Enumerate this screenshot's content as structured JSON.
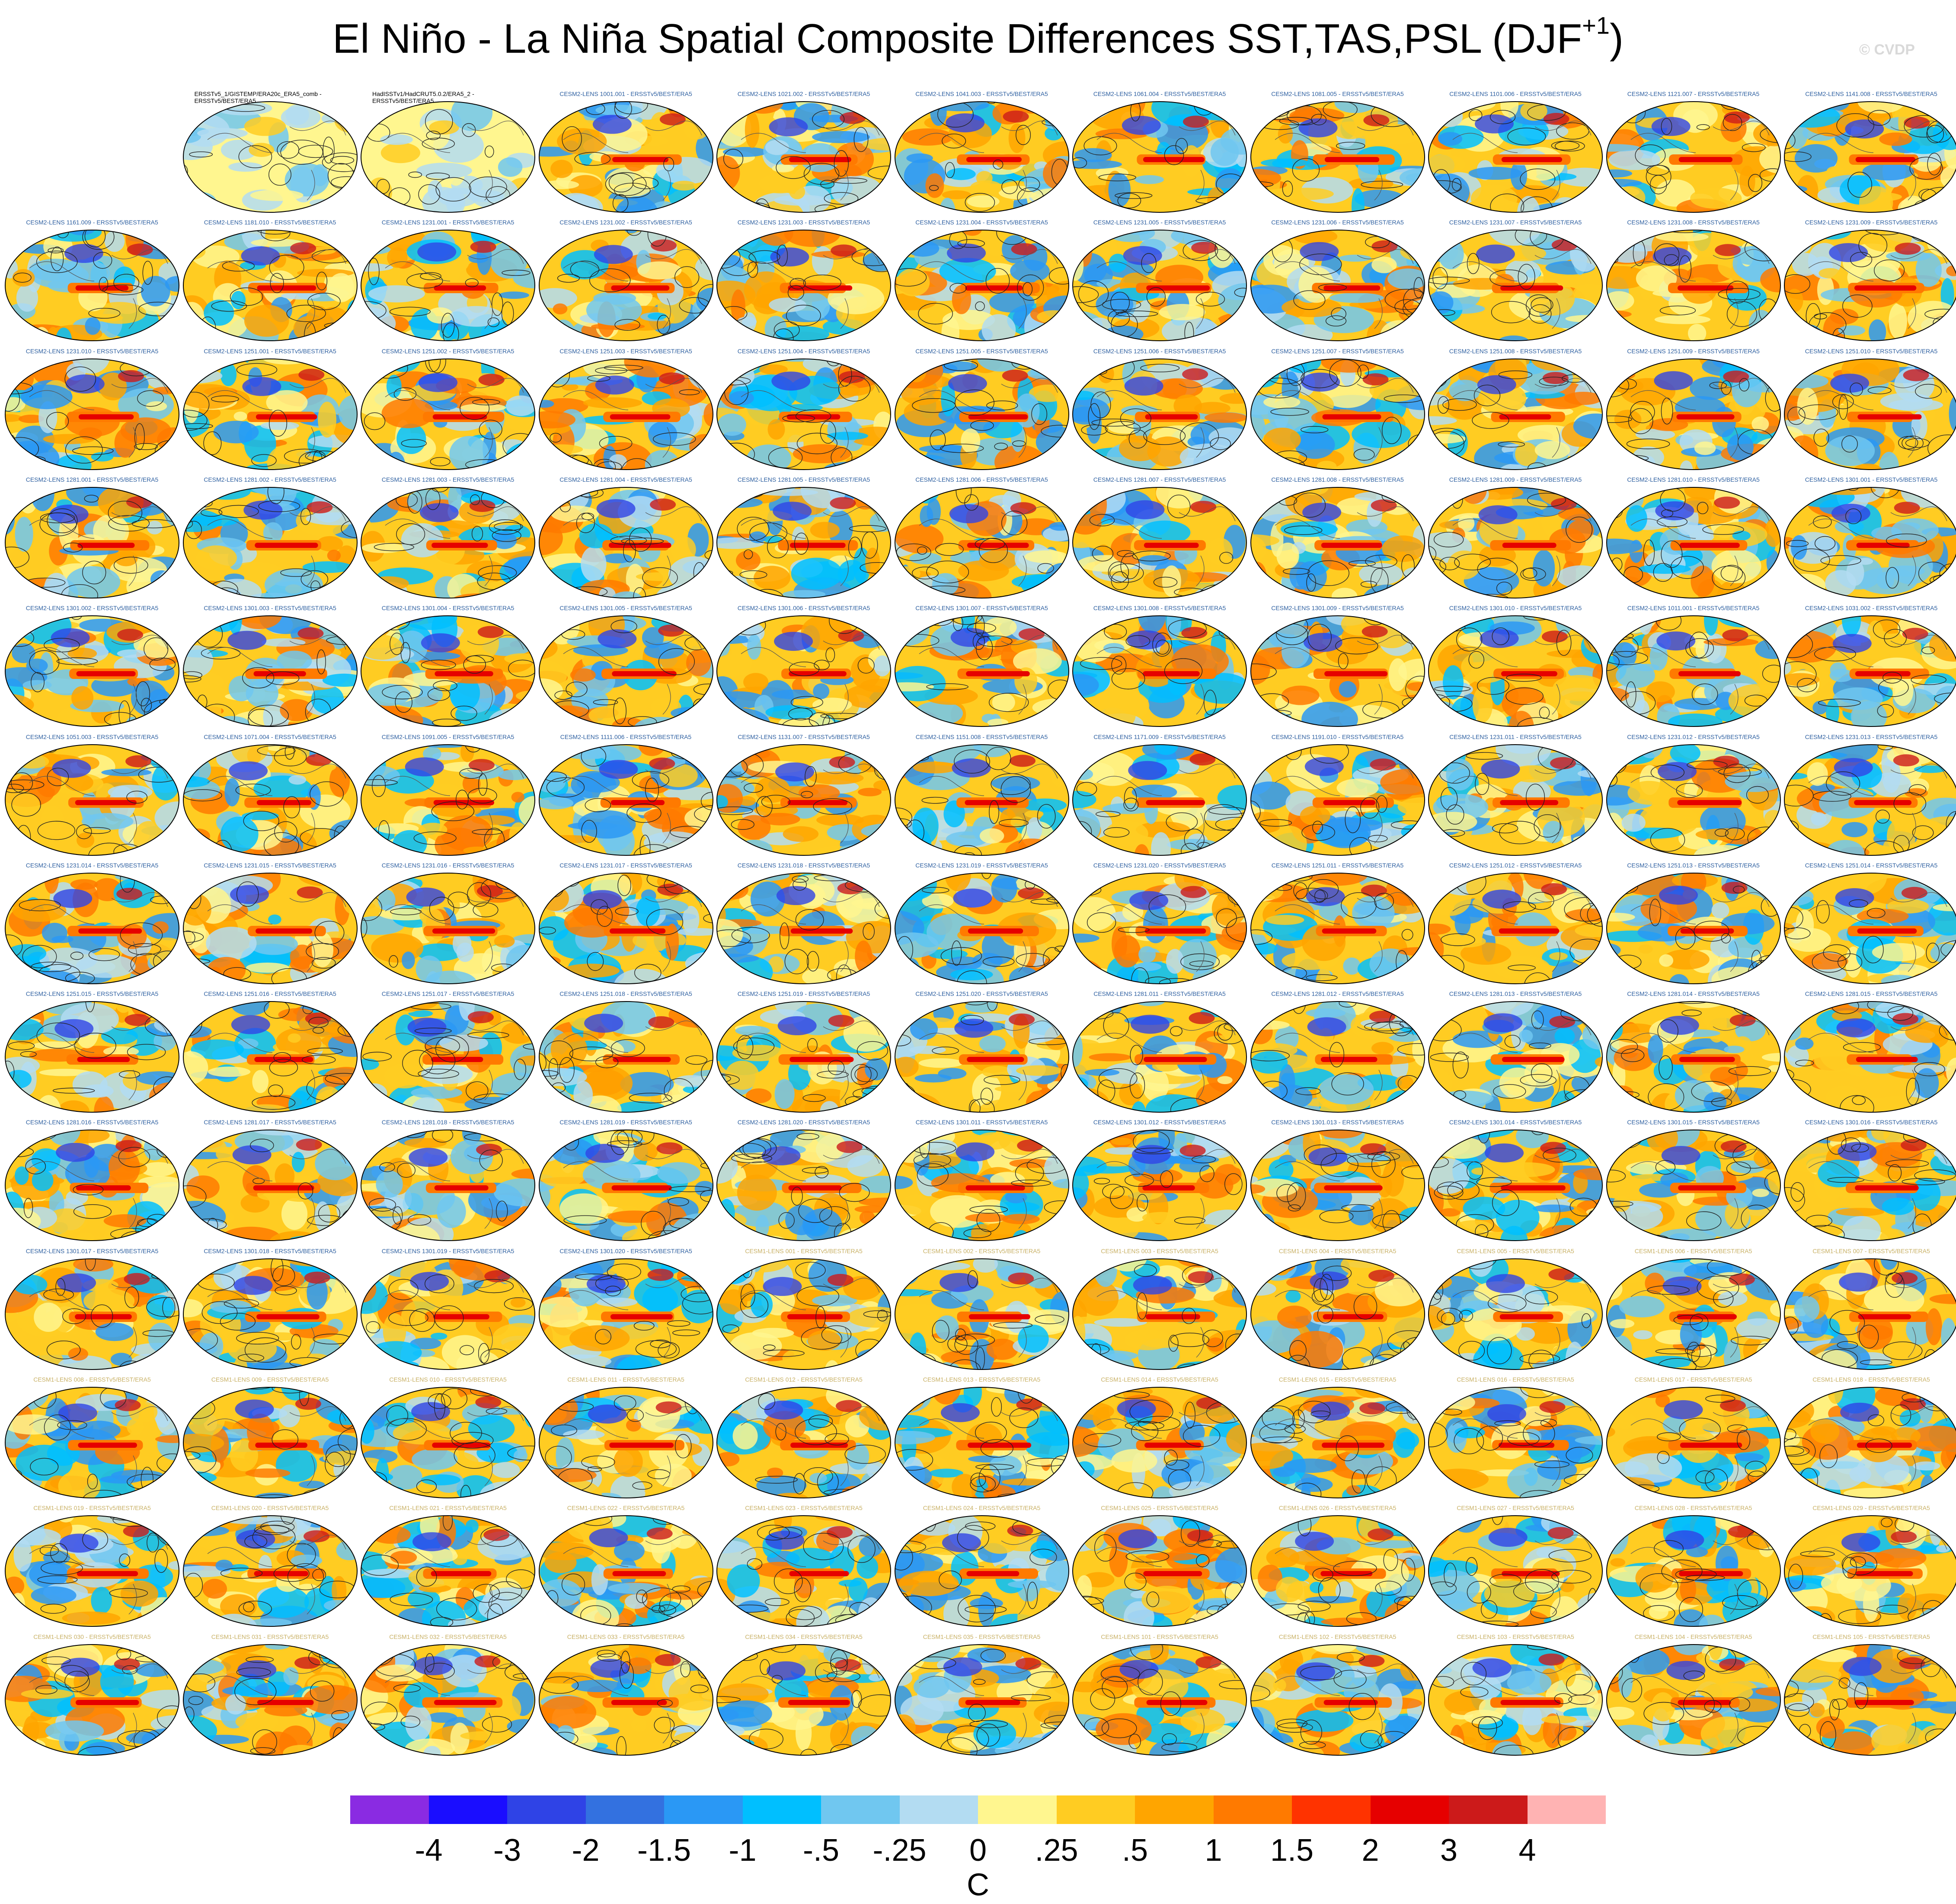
{
  "title": {
    "text": "El Niño - La Niña Spatial Composite Differences SST,TAS,PSL (DJF",
    "superscript": "+1",
    "close": ")"
  },
  "watermark": "© CVDP",
  "panels": [
    {
      "label": "ERSSTv5_1/GISTEMP/ERA20c_ERA5_comb - ERSSTv5/BEST/ERA5",
      "group": "obs1"
    },
    {
      "label": "HadISSTv1/HadCRUT5.0.2/ERA5_2 - ERSSTv5/BEST/ERA5",
      "group": "obs2"
    },
    {
      "label": "CESM2-LENS 1001.001 - ERSSTv5/BEST/ERA5",
      "group": "cesm2"
    },
    {
      "label": "CESM2-LENS 1021.002 - ERSSTv5/BEST/ERA5",
      "group": "cesm2"
    },
    {
      "label": "CESM2-LENS 1041.003 - ERSSTv5/BEST/ERA5",
      "group": "cesm2"
    },
    {
      "label": "CESM2-LENS 1061.004 - ERSSTv5/BEST/ERA5",
      "group": "cesm2"
    },
    {
      "label": "CESM2-LENS 1081.005 - ERSSTv5/BEST/ERA5",
      "group": "cesm2"
    },
    {
      "label": "CESM2-LENS 1101.006 - ERSSTv5/BEST/ERA5",
      "group": "cesm2"
    },
    {
      "label": "CESM2-LENS 1121.007 - ERSSTv5/BEST/ERA5",
      "group": "cesm2"
    },
    {
      "label": "CESM2-LENS 1141.008 - ERSSTv5/BEST/ERA5",
      "group": "cesm2"
    },
    {
      "label": "CESM2-LENS 1161.009 - ERSSTv5/BEST/ERA5",
      "group": "cesm2"
    },
    {
      "label": "CESM2-LENS 1181.010 - ERSSTv5/BEST/ERA5",
      "group": "cesm2"
    },
    {
      "label": "CESM2-LENS 1231.001 - ERSSTv5/BEST/ERA5",
      "group": "cesm2"
    },
    {
      "label": "CESM2-LENS 1231.002 - ERSSTv5/BEST/ERA5",
      "group": "cesm2"
    },
    {
      "label": "CESM2-LENS 1231.003 - ERSSTv5/BEST/ERA5",
      "group": "cesm2"
    },
    {
      "label": "CESM2-LENS 1231.004 - ERSSTv5/BEST/ERA5",
      "group": "cesm2"
    },
    {
      "label": "CESM2-LENS 1231.005 - ERSSTv5/BEST/ERA5",
      "group": "cesm2"
    },
    {
      "label": "CESM2-LENS 1231.006 - ERSSTv5/BEST/ERA5",
      "group": "cesm2"
    },
    {
      "label": "CESM2-LENS 1231.007 - ERSSTv5/BEST/ERA5",
      "group": "cesm2"
    },
    {
      "label": "CESM2-LENS 1231.008 - ERSSTv5/BEST/ERA5",
      "group": "cesm2"
    },
    {
      "label": "CESM2-LENS 1231.009 - ERSSTv5/BEST/ERA5",
      "group": "cesm2"
    },
    {
      "label": "CESM2-LENS 1231.010 - ERSSTv5/BEST/ERA5",
      "group": "cesm2"
    },
    {
      "label": "CESM2-LENS 1251.001 - ERSSTv5/BEST/ERA5",
      "group": "cesm2"
    },
    {
      "label": "CESM2-LENS 1251.002 - ERSSTv5/BEST/ERA5",
      "group": "cesm2"
    },
    {
      "label": "CESM2-LENS 1251.003 - ERSSTv5/BEST/ERA5",
      "group": "cesm2"
    },
    {
      "label": "CESM2-LENS 1251.004 - ERSSTv5/BEST/ERA5",
      "group": "cesm2"
    },
    {
      "label": "CESM2-LENS 1251.005 - ERSSTv5/BEST/ERA5",
      "group": "cesm2"
    },
    {
      "label": "CESM2-LENS 1251.006 - ERSSTv5/BEST/ERA5",
      "group": "cesm2"
    },
    {
      "label": "CESM2-LENS 1251.007 - ERSSTv5/BEST/ERA5",
      "group": "cesm2"
    },
    {
      "label": "CESM2-LENS 1251.008 - ERSSTv5/BEST/ERA5",
      "group": "cesm2"
    },
    {
      "label": "CESM2-LENS 1251.009 - ERSSTv5/BEST/ERA5",
      "group": "cesm2"
    },
    {
      "label": "CESM2-LENS 1251.010 - ERSSTv5/BEST/ERA5",
      "group": "cesm2"
    },
    {
      "label": "CESM2-LENS 1281.001 - ERSSTv5/BEST/ERA5",
      "group": "cesm2"
    },
    {
      "label": "CESM2-LENS 1281.002 - ERSSTv5/BEST/ERA5",
      "group": "cesm2"
    },
    {
      "label": "CESM2-LENS 1281.003 - ERSSTv5/BEST/ERA5",
      "group": "cesm2"
    },
    {
      "label": "CESM2-LENS 1281.004 - ERSSTv5/BEST/ERA5",
      "group": "cesm2"
    },
    {
      "label": "CESM2-LENS 1281.005 - ERSSTv5/BEST/ERA5",
      "group": "cesm2"
    },
    {
      "label": "CESM2-LENS 1281.006 - ERSSTv5/BEST/ERA5",
      "group": "cesm2"
    },
    {
      "label": "CESM2-LENS 1281.007 - ERSSTv5/BEST/ERA5",
      "group": "cesm2"
    },
    {
      "label": "CESM2-LENS 1281.008 - ERSSTv5/BEST/ERA5",
      "group": "cesm2"
    },
    {
      "label": "CESM2-LENS 1281.009 - ERSSTv5/BEST/ERA5",
      "group": "cesm2"
    },
    {
      "label": "CESM2-LENS 1281.010 - ERSSTv5/BEST/ERA5",
      "group": "cesm2"
    },
    {
      "label": "CESM2-LENS 1301.001 - ERSSTv5/BEST/ERA5",
      "group": "cesm2"
    },
    {
      "label": "CESM2-LENS 1301.002 - ERSSTv5/BEST/ERA5",
      "group": "cesm2"
    },
    {
      "label": "CESM2-LENS 1301.003 - ERSSTv5/BEST/ERA5",
      "group": "cesm2"
    },
    {
      "label": "CESM2-LENS 1301.004 - ERSSTv5/BEST/ERA5",
      "group": "cesm2"
    },
    {
      "label": "CESM2-LENS 1301.005 - ERSSTv5/BEST/ERA5",
      "group": "cesm2"
    },
    {
      "label": "CESM2-LENS 1301.006 - ERSSTv5/BEST/ERA5",
      "group": "cesm2"
    },
    {
      "label": "CESM2-LENS 1301.007 - ERSSTv5/BEST/ERA5",
      "group": "cesm2"
    },
    {
      "label": "CESM2-LENS 1301.008 - ERSSTv5/BEST/ERA5",
      "group": "cesm2"
    },
    {
      "label": "CESM2-LENS 1301.009 - ERSSTv5/BEST/ERA5",
      "group": "cesm2"
    },
    {
      "label": "CESM2-LENS 1301.010 - ERSSTv5/BEST/ERA5",
      "group": "cesm2"
    },
    {
      "label": "CESM2-LENS 1011.001 - ERSSTv5/BEST/ERA5",
      "group": "cesm2"
    },
    {
      "label": "CESM2-LENS 1031.002 - ERSSTv5/BEST/ERA5",
      "group": "cesm2"
    },
    {
      "label": "CESM2-LENS 1051.003 - ERSSTv5/BEST/ERA5",
      "group": "cesm2"
    },
    {
      "label": "CESM2-LENS 1071.004 - ERSSTv5/BEST/ERA5",
      "group": "cesm2"
    },
    {
      "label": "CESM2-LENS 1091.005 - ERSSTv5/BEST/ERA5",
      "group": "cesm2"
    },
    {
      "label": "CESM2-LENS 1111.006 - ERSSTv5/BEST/ERA5",
      "group": "cesm2"
    },
    {
      "label": "CESM2-LENS 1131.007 - ERSSTv5/BEST/ERA5",
      "group": "cesm2"
    },
    {
      "label": "CESM2-LENS 1151.008 - ERSSTv5/BEST/ERA5",
      "group": "cesm2"
    },
    {
      "label": "CESM2-LENS 1171.009 - ERSSTv5/BEST/ERA5",
      "group": "cesm2"
    },
    {
      "label": "CESM2-LENS 1191.010 - ERSSTv5/BEST/ERA5",
      "group": "cesm2"
    },
    {
      "label": "CESM2-LENS 1231.011 - ERSSTv5/BEST/ERA5",
      "group": "cesm2"
    },
    {
      "label": "CESM2-LENS 1231.012 - ERSSTv5/BEST/ERA5",
      "group": "cesm2"
    },
    {
      "label": "CESM2-LENS 1231.013 - ERSSTv5/BEST/ERA5",
      "group": "cesm2"
    },
    {
      "label": "CESM2-LENS 1231.014 - ERSSTv5/BEST/ERA5",
      "group": "cesm2"
    },
    {
      "label": "CESM2-LENS 1231.015 - ERSSTv5/BEST/ERA5",
      "group": "cesm2"
    },
    {
      "label": "CESM2-LENS 1231.016 - ERSSTv5/BEST/ERA5",
      "group": "cesm2"
    },
    {
      "label": "CESM2-LENS 1231.017 - ERSSTv5/BEST/ERA5",
      "group": "cesm2"
    },
    {
      "label": "CESM2-LENS 1231.018 - ERSSTv5/BEST/ERA5",
      "group": "cesm2"
    },
    {
      "label": "CESM2-LENS 1231.019 - ERSSTv5/BEST/ERA5",
      "group": "cesm2"
    },
    {
      "label": "CESM2-LENS 1231.020 - ERSSTv5/BEST/ERA5",
      "group": "cesm2"
    },
    {
      "label": "CESM2-LENS 1251.011 - ERSSTv5/BEST/ERA5",
      "group": "cesm2"
    },
    {
      "label": "CESM2-LENS 1251.012 - ERSSTv5/BEST/ERA5",
      "group": "cesm2"
    },
    {
      "label": "CESM2-LENS 1251.013 - ERSSTv5/BEST/ERA5",
      "group": "cesm2"
    },
    {
      "label": "CESM2-LENS 1251.014 - ERSSTv5/BEST/ERA5",
      "group": "cesm2"
    },
    {
      "label": "CESM2-LENS 1251.015 - ERSSTv5/BEST/ERA5",
      "group": "cesm2"
    },
    {
      "label": "CESM2-LENS 1251.016 - ERSSTv5/BEST/ERA5",
      "group": "cesm2"
    },
    {
      "label": "CESM2-LENS 1251.017 - ERSSTv5/BEST/ERA5",
      "group": "cesm2"
    },
    {
      "label": "CESM2-LENS 1251.018 - ERSSTv5/BEST/ERA5",
      "group": "cesm2"
    },
    {
      "label": "CESM2-LENS 1251.019 - ERSSTv5/BEST/ERA5",
      "group": "cesm2"
    },
    {
      "label": "CESM2-LENS 1251.020 - ERSSTv5/BEST/ERA5",
      "group": "cesm2"
    },
    {
      "label": "CESM2-LENS 1281.011 - ERSSTv5/BEST/ERA5",
      "group": "cesm2"
    },
    {
      "label": "CESM2-LENS 1281.012 - ERSSTv5/BEST/ERA5",
      "group": "cesm2"
    },
    {
      "label": "CESM2-LENS 1281.013 - ERSSTv5/BEST/ERA5",
      "group": "cesm2"
    },
    {
      "label": "CESM2-LENS 1281.014 - ERSSTv5/BEST/ERA5",
      "group": "cesm2"
    },
    {
      "label": "CESM2-LENS 1281.015 - ERSSTv5/BEST/ERA5",
      "group": "cesm2"
    },
    {
      "label": "CESM2-LENS 1281.016 - ERSSTv5/BEST/ERA5",
      "group": "cesm2"
    },
    {
      "label": "CESM2-LENS 1281.017 - ERSSTv5/BEST/ERA5",
      "group": "cesm2"
    },
    {
      "label": "CESM2-LENS 1281.018 - ERSSTv5/BEST/ERA5",
      "group": "cesm2"
    },
    {
      "label": "CESM2-LENS 1281.019 - ERSSTv5/BEST/ERA5",
      "group": "cesm2"
    },
    {
      "label": "CESM2-LENS 1281.020 - ERSSTv5/BEST/ERA5",
      "group": "cesm2"
    },
    {
      "label": "CESM2-LENS 1301.011 - ERSSTv5/BEST/ERA5",
      "group": "cesm2"
    },
    {
      "label": "CESM2-LENS 1301.012 - ERSSTv5/BEST/ERA5",
      "group": "cesm2"
    },
    {
      "label": "CESM2-LENS 1301.013 - ERSSTv5/BEST/ERA5",
      "group": "cesm2"
    },
    {
      "label": "CESM2-LENS 1301.014 - ERSSTv5/BEST/ERA5",
      "group": "cesm2"
    },
    {
      "label": "CESM2-LENS 1301.015 - ERSSTv5/BEST/ERA5",
      "group": "cesm2"
    },
    {
      "label": "CESM2-LENS 1301.016 - ERSSTv5/BEST/ERA5",
      "group": "cesm2"
    },
    {
      "label": "CESM2-LENS 1301.017 - ERSSTv5/BEST/ERA5",
      "group": "cesm2"
    },
    {
      "label": "CESM2-LENS 1301.018 - ERSSTv5/BEST/ERA5",
      "group": "cesm2"
    },
    {
      "label": "CESM2-LENS 1301.019 - ERSSTv5/BEST/ERA5",
      "group": "cesm2"
    },
    {
      "label": "CESM2-LENS 1301.020 - ERSSTv5/BEST/ERA5",
      "group": "cesm2"
    },
    {
      "label": "CESM1-LENS 001 - ERSSTv5/BEST/ERA5",
      "group": "cesm1"
    },
    {
      "label": "CESM1-LENS 002 - ERSSTv5/BEST/ERA5",
      "group": "cesm1"
    },
    {
      "label": "CESM1-LENS 003 - ERSSTv5/BEST/ERA5",
      "group": "cesm1"
    },
    {
      "label": "CESM1-LENS 004 - ERSSTv5/BEST/ERA5",
      "group": "cesm1"
    },
    {
      "label": "CESM1-LENS 005 - ERSSTv5/BEST/ERA5",
      "group": "cesm1"
    },
    {
      "label": "CESM1-LENS 006 - ERSSTv5/BEST/ERA5",
      "group": "cesm1"
    },
    {
      "label": "CESM1-LENS 007 - ERSSTv5/BEST/ERA5",
      "group": "cesm1"
    },
    {
      "label": "CESM1-LENS 008 - ERSSTv5/BEST/ERA5",
      "group": "cesm1"
    },
    {
      "label": "CESM1-LENS 009 - ERSSTv5/BEST/ERA5",
      "group": "cesm1"
    },
    {
      "label": "CESM1-LENS 010 - ERSSTv5/BEST/ERA5",
      "group": "cesm1"
    },
    {
      "label": "CESM1-LENS 011 - ERSSTv5/BEST/ERA5",
      "group": "cesm1"
    },
    {
      "label": "CESM1-LENS 012 - ERSSTv5/BEST/ERA5",
      "group": "cesm1"
    },
    {
      "label": "CESM1-LENS 013 - ERSSTv5/BEST/ERA5",
      "group": "cesm1"
    },
    {
      "label": "CESM1-LENS 014 - ERSSTv5/BEST/ERA5",
      "group": "cesm1"
    },
    {
      "label": "CESM1-LENS 015 - ERSSTv5/BEST/ERA5",
      "group": "cesm1"
    },
    {
      "label": "CESM1-LENS 016 - ERSSTv5/BEST/ERA5",
      "group": "cesm1"
    },
    {
      "label": "CESM1-LENS 017 - ERSSTv5/BEST/ERA5",
      "group": "cesm1"
    },
    {
      "label": "CESM1-LENS 018 - ERSSTv5/BEST/ERA5",
      "group": "cesm1"
    },
    {
      "label": "CESM1-LENS 019 - ERSSTv5/BEST/ERA5",
      "group": "cesm1"
    },
    {
      "label": "CESM1-LENS 020 - ERSSTv5/BEST/ERA5",
      "group": "cesm1"
    },
    {
      "label": "CESM1-LENS 021 - ERSSTv5/BEST/ERA5",
      "group": "cesm1"
    },
    {
      "label": "CESM1-LENS 022 - ERSSTv5/BEST/ERA5",
      "group": "cesm1"
    },
    {
      "label": "CESM1-LENS 023 - ERSSTv5/BEST/ERA5",
      "group": "cesm1"
    },
    {
      "label": "CESM1-LENS 024 - ERSSTv5/BEST/ERA5",
      "group": "cesm1"
    },
    {
      "label": "CESM1-LENS 025 - ERSSTv5/BEST/ERA5",
      "group": "cesm1"
    },
    {
      "label": "CESM1-LENS 026 - ERSSTv5/BEST/ERA5",
      "group": "cesm1"
    },
    {
      "label": "CESM1-LENS 027 - ERSSTv5/BEST/ERA5",
      "group": "cesm1"
    },
    {
      "label": "CESM1-LENS 028 - ERSSTv5/BEST/ERA5",
      "group": "cesm1"
    },
    {
      "label": "CESM1-LENS 029 - ERSSTv5/BEST/ERA5",
      "group": "cesm1"
    },
    {
      "label": "CESM1-LENS 030 - ERSSTv5/BEST/ERA5",
      "group": "cesm1"
    },
    {
      "label": "CESM1-LENS 031 - ERSSTv5/BEST/ERA5",
      "group": "cesm1"
    },
    {
      "label": "CESM1-LENS 032 - ERSSTv5/BEST/ERA5",
      "group": "cesm1"
    },
    {
      "label": "CESM1-LENS 033 - ERSSTv5/BEST/ERA5",
      "group": "cesm1"
    },
    {
      "label": "CESM1-LENS 034 - ERSSTv5/BEST/ERA5",
      "group": "cesm1"
    },
    {
      "label": "CESM1-LENS 035 - ERSSTv5/BEST/ERA5",
      "group": "cesm1"
    },
    {
      "label": "CESM1-LENS 101 - ERSSTv5/BEST/ERA5",
      "group": "cesm1"
    },
    {
      "label": "CESM1-LENS 102 - ERSSTv5/BEST/ERA5",
      "group": "cesm1"
    },
    {
      "label": "CESM1-LENS 103 - ERSSTv5/BEST/ERA5",
      "group": "cesm1"
    },
    {
      "label": "CESM1-LENS 104 - ERSSTv5/BEST/ERA5",
      "group": "cesm1"
    },
    {
      "label": "CESM1-LENS 105 - ERSSTv5/BEST/ERA5",
      "group": "cesm1"
    }
  ],
  "colorbar": {
    "colors": [
      "#8a2be2",
      "#1a0dff",
      "#2f43e6",
      "#3371e0",
      "#2a98f5",
      "#00bfff",
      "#70c7f0",
      "#b3dcf2",
      "#fff68f",
      "#ffcc22",
      "#ffa500",
      "#ff7a00",
      "#ff3300",
      "#e60000",
      "#cc1a1a",
      "#ffb3b3"
    ],
    "labels": [
      "-4",
      "-3",
      "-2",
      "-1.5",
      "-1",
      "-.5",
      "-.25",
      "0",
      ".25",
      ".5",
      "1",
      "1.5",
      "2",
      "3",
      "4"
    ],
    "unit": "C"
  }
}
